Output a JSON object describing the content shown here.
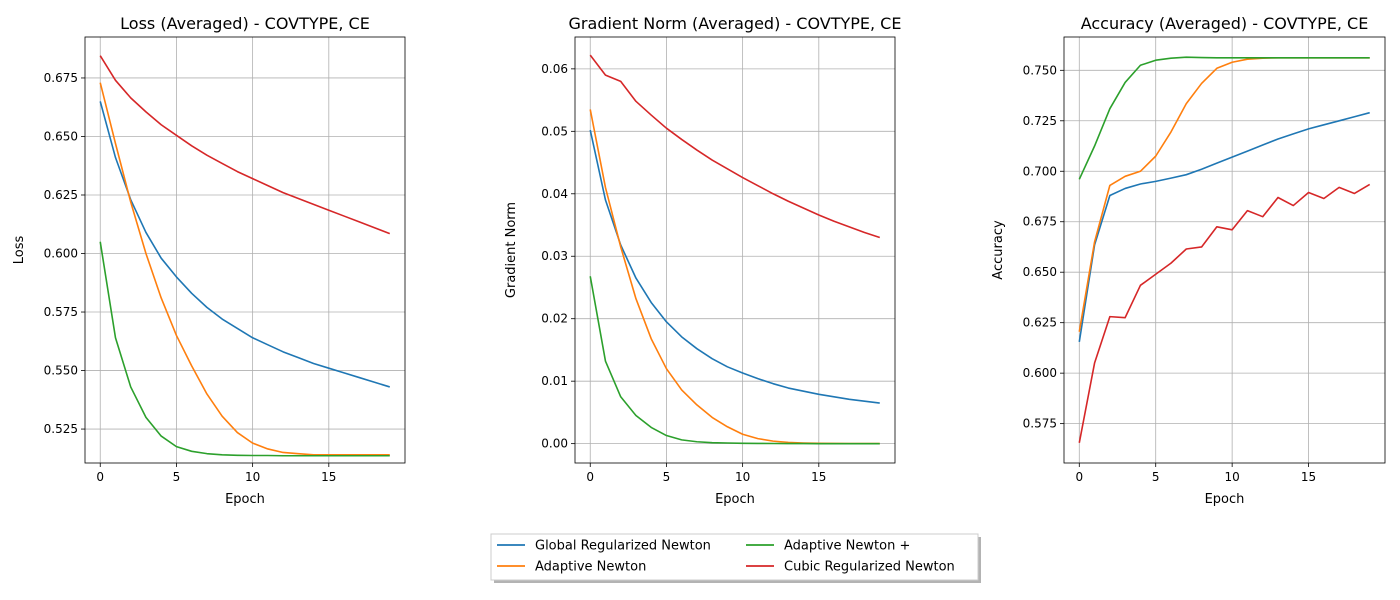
{
  "legend": {
    "placement": "bottom-center",
    "columns": 2
  },
  "series_styles": [
    {
      "name": "Global Regularized Newton",
      "color": "#1f77b4"
    },
    {
      "name": "Adaptive Newton",
      "color": "#ff7f0e"
    },
    {
      "name": "Adaptive Newton +",
      "color": "#2ca02c"
    },
    {
      "name": "Cubic Regularized Newton",
      "color": "#d62728"
    }
  ],
  "chart_data": [
    {
      "type": "line",
      "title": "Loss (Averaged) - COVTYPE, CE",
      "xlabel": "Epoch",
      "ylabel": "Loss",
      "xlim": [
        -1.0,
        20.0
      ],
      "ylim": [
        0.5105,
        0.6925
      ],
      "xticks": [
        0,
        5,
        10,
        15
      ],
      "yticks": [
        0.525,
        0.55,
        0.575,
        0.6,
        0.625,
        0.65,
        0.675
      ],
      "tick_decimals": 3,
      "grid": true,
      "x": [
        0,
        1,
        2,
        3,
        4,
        5,
        6,
        7,
        8,
        9,
        10,
        11,
        12,
        13,
        14,
        15,
        16,
        17,
        18,
        19
      ],
      "series": [
        {
          "name": "Global Regularized Newton",
          "values": [
            0.665,
            0.641,
            0.623,
            0.609,
            0.598,
            0.59,
            0.583,
            0.577,
            0.572,
            0.568,
            0.564,
            0.561,
            0.558,
            0.5555,
            0.553,
            0.551,
            0.549,
            0.547,
            0.545,
            0.543
          ]
        },
        {
          "name": "Adaptive Newton",
          "values": [
            0.673,
            0.647,
            0.622,
            0.6,
            0.581,
            0.565,
            0.552,
            0.54,
            0.5305,
            0.5235,
            0.519,
            0.5165,
            0.515,
            0.5145,
            0.514,
            0.514,
            0.514,
            0.514,
            0.514,
            0.514
          ]
        },
        {
          "name": "Adaptive Newton +",
          "values": [
            0.605,
            0.564,
            0.543,
            0.53,
            0.522,
            0.5175,
            0.5155,
            0.5145,
            0.514,
            0.5138,
            0.5137,
            0.5137,
            0.5136,
            0.5136,
            0.5136,
            0.5136,
            0.5136,
            0.5136,
            0.5136,
            0.5136
          ]
        },
        {
          "name": "Cubic Regularized Newton",
          "values": [
            0.6845,
            0.674,
            0.6665,
            0.6605,
            0.655,
            0.6505,
            0.646,
            0.642,
            0.6385,
            0.635,
            0.632,
            0.629,
            0.626,
            0.6235,
            0.621,
            0.6185,
            0.616,
            0.6135,
            0.611,
            0.6085
          ]
        }
      ]
    },
    {
      "type": "line",
      "title": "Gradient Norm (Averaged) - COVTYPE, CE",
      "xlabel": "Epoch",
      "ylabel": "Gradient Norm",
      "xlim": [
        -1.0,
        20.0
      ],
      "ylim": [
        -0.0031,
        0.0651
      ],
      "xticks": [
        0,
        5,
        10,
        15
      ],
      "yticks": [
        0.0,
        0.01,
        0.02,
        0.03,
        0.04,
        0.05,
        0.06
      ],
      "tick_decimals": 2,
      "grid": true,
      "x": [
        0,
        1,
        2,
        3,
        4,
        5,
        6,
        7,
        8,
        9,
        10,
        11,
        12,
        13,
        14,
        15,
        16,
        17,
        18,
        19
      ],
      "series": [
        {
          "name": "Global Regularized Newton",
          "values": [
            0.0502,
            0.039,
            0.0318,
            0.0265,
            0.0226,
            0.0195,
            0.0171,
            0.0152,
            0.0136,
            0.0123,
            0.0113,
            0.0104,
            0.0096,
            0.0089,
            0.0084,
            0.0079,
            0.0075,
            0.0071,
            0.0068,
            0.0065
          ]
        },
        {
          "name": "Adaptive Newton",
          "values": [
            0.0535,
            0.041,
            0.0315,
            0.0232,
            0.0168,
            0.012,
            0.0086,
            0.0062,
            0.0042,
            0.0027,
            0.0015,
            0.0008,
            0.0004,
            0.0002,
            0.0001,
            5e-05,
            3e-05,
            2e-05,
            1e-05,
            1e-05
          ]
        },
        {
          "name": "Adaptive Newton +",
          "values": [
            0.0268,
            0.0132,
            0.0075,
            0.0045,
            0.0026,
            0.0013,
            0.0006,
            0.0003,
            0.00015,
            0.0001,
            5e-05,
            3e-05,
            2e-05,
            1e-05,
            1e-05,
            0.0,
            0.0,
            0.0,
            0.0,
            0.0
          ]
        },
        {
          "name": "Cubic Regularized Newton",
          "values": [
            0.0622,
            0.059,
            0.058,
            0.0548,
            0.0526,
            0.0505,
            0.0487,
            0.047,
            0.0454,
            0.044,
            0.0426,
            0.0413,
            0.04,
            0.0388,
            0.0377,
            0.0366,
            0.0356,
            0.0347,
            0.0338,
            0.033
          ]
        }
      ]
    },
    {
      "type": "line",
      "title": "Accuracy (Averaged) - COVTYPE, CE",
      "xlabel": "Epoch",
      "ylabel": "Accuracy",
      "xlim": [
        -1.0,
        20.0
      ],
      "ylim": [
        0.5555,
        0.7665
      ],
      "xticks": [
        0,
        5,
        10,
        15
      ],
      "yticks": [
        0.575,
        0.6,
        0.625,
        0.65,
        0.675,
        0.7,
        0.725,
        0.75
      ],
      "tick_decimals": 3,
      "grid": true,
      "x": [
        0,
        1,
        2,
        3,
        4,
        5,
        6,
        7,
        8,
        9,
        10,
        11,
        12,
        13,
        14,
        15,
        16,
        17,
        18,
        19
      ],
      "series": [
        {
          "name": "Global Regularized Newton",
          "values": [
            0.6155,
            0.6635,
            0.688,
            0.6915,
            0.6937,
            0.695,
            0.6966,
            0.6983,
            0.701,
            0.704,
            0.707,
            0.71,
            0.713,
            0.716,
            0.7185,
            0.721,
            0.723,
            0.725,
            0.727,
            0.729
          ]
        },
        {
          "name": "Adaptive Newton",
          "values": [
            0.6205,
            0.665,
            0.693,
            0.6975,
            0.7,
            0.7075,
            0.7195,
            0.7335,
            0.7435,
            0.751,
            0.754,
            0.7555,
            0.756,
            0.7562,
            0.7562,
            0.7562,
            0.7562,
            0.7562,
            0.7562,
            0.7562
          ]
        },
        {
          "name": "Adaptive Newton +",
          "values": [
            0.696,
            0.7125,
            0.731,
            0.744,
            0.7525,
            0.755,
            0.756,
            0.7565,
            0.7563,
            0.7562,
            0.7562,
            0.7562,
            0.7562,
            0.7562,
            0.7562,
            0.7562,
            0.7562,
            0.7562,
            0.7562,
            0.7562
          ]
        },
        {
          "name": "Cubic Regularized Newton",
          "values": [
            0.5655,
            0.605,
            0.628,
            0.6275,
            0.6435,
            0.649,
            0.6545,
            0.6615,
            0.6625,
            0.6725,
            0.671,
            0.6805,
            0.6775,
            0.687,
            0.683,
            0.6895,
            0.6865,
            0.692,
            0.689,
            0.6935
          ]
        }
      ]
    }
  ]
}
